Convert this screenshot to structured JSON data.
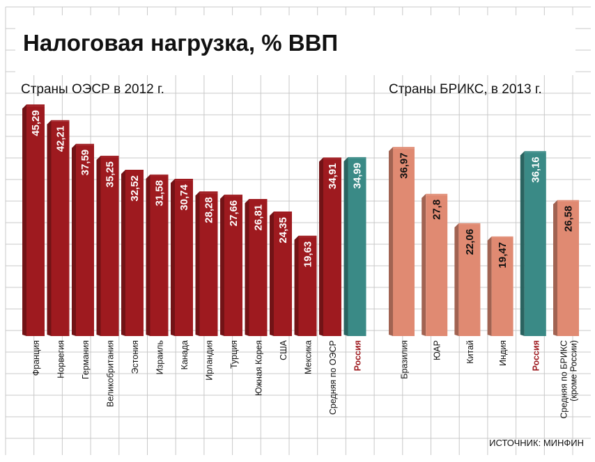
{
  "title": "Налоговая нагрузка, % ВВП",
  "source": "ИСТОЧНИК: МИНФИН",
  "colors": {
    "oecd": "#9e1a1f",
    "brics": "#e08a72",
    "russia": "#3a8a86",
    "grid": "#c8c8c8",
    "highlight_label": "#9e1a1f",
    "value_text_dark": "#111111",
    "value_text_light": "#ffffff"
  },
  "chart_data": [
    {
      "type": "bar",
      "title": "Страны ОЭСР в 2012 г.",
      "ylim": [
        0,
        50
      ],
      "categories": [
        "Франция",
        "Норвегия",
        "Германия",
        "Великобритания",
        "Эстония",
        "Израиль",
        "Канада",
        "Ирландия",
        "Турция",
        "Южная Корея",
        "США",
        "Мексика",
        "Средняя по ОЭСР",
        "Россия"
      ],
      "values": [
        45.29,
        42.21,
        37.59,
        35.25,
        32.52,
        31.58,
        30.74,
        28.28,
        27.66,
        26.81,
        24.35,
        19.63,
        34.91,
        34.99
      ],
      "value_labels": [
        "45,29",
        "42,21",
        "37,59",
        "35,25",
        "32,52",
        "31,58",
        "30,74",
        "28,28",
        "27,66",
        "26,81",
        "24,35",
        "19,63",
        "34,91",
        "34,99"
      ],
      "highlight": "Россия"
    },
    {
      "type": "bar",
      "title": "Страны БРИКС, в 2013 г.",
      "ylim": [
        0,
        50
      ],
      "categories": [
        "Бразилия",
        "ЮАР",
        "Китай",
        "Индия",
        "Россия",
        "Средняя по БРИКС (кроме России)"
      ],
      "category_lines": [
        [
          "Бразилия"
        ],
        [
          "ЮАР"
        ],
        [
          "Китай"
        ],
        [
          "Индия"
        ],
        [
          "Россия"
        ],
        [
          "Средняя по БРИКС",
          "(кроме России)"
        ]
      ],
      "values": [
        36.97,
        27.8,
        22.06,
        19.47,
        36.16,
        26.58
      ],
      "value_labels": [
        "36,97",
        "27,8",
        "22,06",
        "19,47",
        "36,16",
        "26,58"
      ],
      "highlight": "Россия"
    }
  ]
}
